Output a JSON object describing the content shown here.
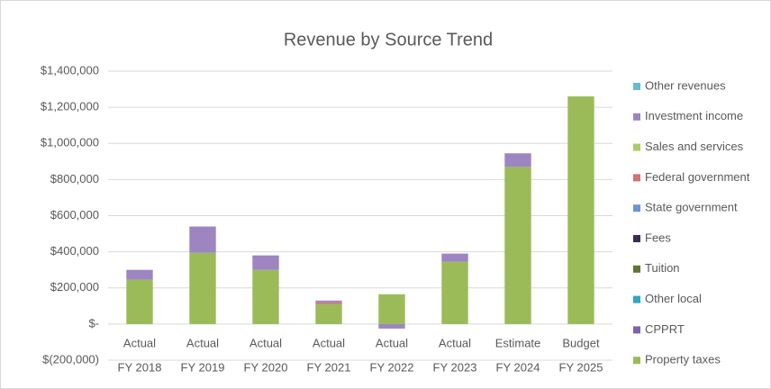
{
  "chart_data": {
    "type": "stacked_bar",
    "title": "Revenue by Source Trend",
    "categories": [
      [
        "Actual",
        "FY 2018"
      ],
      [
        "Actual",
        "FY 2019"
      ],
      [
        "Actual",
        "FY 2020"
      ],
      [
        "Actual",
        "FY 2021"
      ],
      [
        "Actual",
        "FY 2022"
      ],
      [
        "Actual",
        "FY 2023"
      ],
      [
        "Estimate",
        "FY 2024"
      ],
      [
        "Budget",
        "FY 2025"
      ]
    ],
    "series": [
      {
        "name": "Property taxes",
        "color": "#9bbb59",
        "values": [
          245000,
          395000,
          300000,
          110000,
          165000,
          345000,
          870000,
          1260000
        ]
      },
      {
        "name": "CPPRT",
        "color": "#7f62a8",
        "values": [
          0,
          0,
          0,
          0,
          0,
          0,
          0,
          0
        ]
      },
      {
        "name": "Other local",
        "color": "#31a5c4",
        "values": [
          0,
          0,
          0,
          0,
          0,
          0,
          0,
          0
        ]
      },
      {
        "name": "Tuition",
        "color": "#5f7530",
        "values": [
          0,
          0,
          0,
          0,
          0,
          0,
          0,
          0
        ]
      },
      {
        "name": "Fees",
        "color": "#3b2b55",
        "values": [
          0,
          0,
          0,
          0,
          0,
          0,
          0,
          0
        ]
      },
      {
        "name": "State government",
        "color": "#6f95cc",
        "values": [
          0,
          0,
          0,
          0,
          0,
          0,
          0,
          0
        ]
      },
      {
        "name": "Federal government",
        "color": "#d07570",
        "values": [
          0,
          0,
          0,
          10000,
          0,
          0,
          0,
          0
        ]
      },
      {
        "name": "Sales and services",
        "color": "#a9cc6b",
        "values": [
          0,
          0,
          0,
          0,
          0,
          0,
          0,
          0
        ]
      },
      {
        "name": "Investment income",
        "color": "#9c85c0",
        "values": [
          55000,
          145000,
          80000,
          10000,
          -25000,
          45000,
          75000,
          0
        ]
      },
      {
        "name": "Other revenues",
        "color": "#65bccf",
        "values": [
          0,
          0,
          0,
          0,
          0,
          0,
          0,
          0
        ]
      }
    ],
    "ylim": [
      -200000,
      1400000
    ],
    "yticks": [
      {
        "value": -200000,
        "label": "$(200,000)"
      },
      {
        "value": 0,
        "label": "$-"
      },
      {
        "value": 200000,
        "label": "$200,000"
      },
      {
        "value": 400000,
        "label": "$400,000"
      },
      {
        "value": 600000,
        "label": "$600,000"
      },
      {
        "value": 800000,
        "label": "$800,000"
      },
      {
        "value": 1000000,
        "label": "$1,000,000"
      },
      {
        "value": 1200000,
        "label": "$1,200,000"
      },
      {
        "value": 1400000,
        "label": "$1,400,000"
      }
    ],
    "grid": true,
    "legend": "right"
  }
}
